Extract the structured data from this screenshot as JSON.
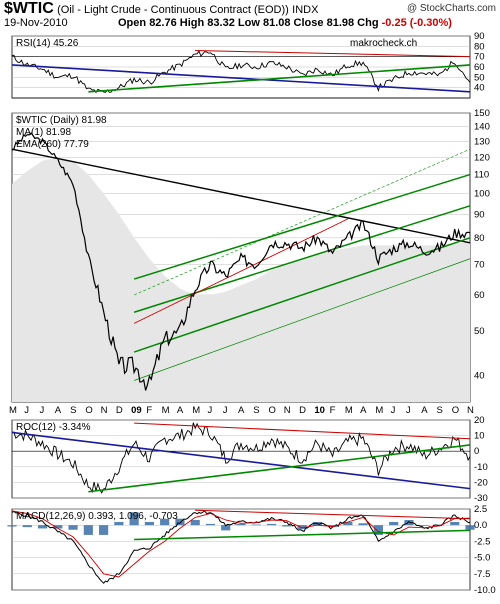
{
  "header": {
    "symbol": "$WTIC",
    "name": "(Oil - Light Crude - Continuous Contract (EOD))",
    "exchange": "INDX",
    "date": "19-Nov-2010",
    "open_label": "Open",
    "open": "82.76",
    "high_label": "High",
    "high": "83.32",
    "low_label": "Low",
    "low": "81.08",
    "close_label": "Close",
    "close": "81.98",
    "chg_label": "Chg",
    "chg": "-0.25 (-0.30%)",
    "credit": "@ StockCharts.com"
  },
  "chart_data": [
    {
      "type": "line",
      "panel": "rsi",
      "title": "RSI(14) 45.26",
      "watermark": "makrocheck.ch",
      "ylim": [
        30,
        90
      ],
      "yticks": [
        40,
        50,
        60,
        70,
        80,
        90
      ],
      "reference_lines": [
        30,
        70
      ],
      "x": [
        "2008-05",
        "2008-06",
        "2008-07",
        "2008-08",
        "2008-09",
        "2008-10",
        "2008-11",
        "2008-12",
        "2009-01",
        "2009-02",
        "2009-03",
        "2009-04",
        "2009-05",
        "2009-06",
        "2009-07",
        "2009-08",
        "2009-09",
        "2009-10",
        "2009-11",
        "2009-12",
        "2010-01",
        "2010-02",
        "2010-03",
        "2010-04",
        "2010-05",
        "2010-06",
        "2010-07",
        "2010-08",
        "2010-09",
        "2010-10",
        "2010-11"
      ],
      "series": [
        {
          "values": [
            70,
            62,
            58,
            50,
            52,
            38,
            35,
            40,
            48,
            45,
            55,
            62,
            72,
            75,
            58,
            62,
            60,
            64,
            60,
            52,
            58,
            52,
            62,
            64,
            40,
            48,
            55,
            54,
            52,
            66,
            45
          ]
        }
      ]
    },
    {
      "type": "line",
      "panel": "price",
      "title": "$WTIC (Daily) 81.98",
      "legend": [
        "MA(1) 81.98",
        "EMA(260) 77.79"
      ],
      "ylim": [
        35,
        150
      ],
      "log_scale": true,
      "yticks": [
        40,
        50,
        60,
        70,
        80,
        90,
        100,
        110,
        120,
        130,
        140,
        150
      ],
      "xlabels": [
        "M",
        "J",
        "J",
        "A",
        "S",
        "O",
        "N",
        "D",
        "09",
        "F",
        "M",
        "A",
        "M",
        "J",
        "J",
        "A",
        "S",
        "O",
        "N",
        "D",
        "10",
        "F",
        "M",
        "A",
        "M",
        "J",
        "J",
        "A",
        "S",
        "O",
        "N"
      ],
      "x": [
        "2008-05",
        "2008-06",
        "2008-07",
        "2008-08",
        "2008-09",
        "2008-10",
        "2008-11",
        "2008-12",
        "2009-01",
        "2009-02",
        "2009-03",
        "2009-04",
        "2009-05",
        "2009-06",
        "2009-07",
        "2009-08",
        "2009-09",
        "2009-10",
        "2009-11",
        "2009-12",
        "2010-01",
        "2010-02",
        "2010-03",
        "2010-04",
        "2010-05",
        "2010-06",
        "2010-07",
        "2010-08",
        "2010-09",
        "2010-10",
        "2010-11"
      ],
      "series": [
        {
          "name": "MA(1) 81.98",
          "values": [
            125,
            135,
            130,
            118,
            105,
            72,
            55,
            42,
            42,
            38,
            48,
            50,
            62,
            70,
            66,
            72,
            70,
            78,
            78,
            76,
            80,
            74,
            80,
            86,
            72,
            76,
            78,
            75,
            76,
            82,
            82
          ]
        },
        {
          "name": "EMA(260) 77.79",
          "values": [
            105,
            112,
            118,
            120,
            118,
            110,
            100,
            90,
            80,
            72,
            66,
            62,
            60,
            60,
            61,
            63,
            65,
            68,
            70,
            72,
            74,
            75,
            76,
            77,
            77,
            77,
            77,
            77,
            77,
            78,
            78
          ]
        }
      ]
    },
    {
      "type": "line",
      "panel": "roc",
      "title": "ROC(12) -3.34%",
      "ylim": [
        -30,
        20
      ],
      "yticks": [
        -30,
        -20,
        -10,
        0,
        10,
        20
      ],
      "x": [
        "2008-05",
        "2008-06",
        "2008-07",
        "2008-08",
        "2008-09",
        "2008-10",
        "2008-11",
        "2008-12",
        "2009-01",
        "2009-02",
        "2009-03",
        "2009-04",
        "2009-05",
        "2009-06",
        "2009-07",
        "2009-08",
        "2009-09",
        "2009-10",
        "2009-11",
        "2009-12",
        "2010-01",
        "2010-02",
        "2010-03",
        "2010-04",
        "2010-05",
        "2010-06",
        "2010-07",
        "2010-08",
        "2010-09",
        "2010-10",
        "2010-11"
      ],
      "series": [
        {
          "values": [
            12,
            10,
            5,
            -2,
            -8,
            -22,
            -25,
            -10,
            5,
            -5,
            8,
            10,
            15,
            12,
            -5,
            5,
            2,
            8,
            2,
            -5,
            5,
            -3,
            6,
            8,
            -12,
            2,
            4,
            -3,
            2,
            8,
            -3.34
          ]
        }
      ]
    },
    {
      "type": "line",
      "panel": "macd",
      "title": "MACD(12,26,9) 0.393, 1.096, -0.703",
      "ylim": [
        -10,
        2.5
      ],
      "yticks": [
        -10.0,
        -7.5,
        -5.0,
        -2.5,
        0.0,
        2.5
      ],
      "x": [
        "2008-05",
        "2008-06",
        "2008-07",
        "2008-08",
        "2008-09",
        "2008-10",
        "2008-11",
        "2008-12",
        "2009-01",
        "2009-02",
        "2009-03",
        "2009-04",
        "2009-05",
        "2009-06",
        "2009-07",
        "2009-08",
        "2009-09",
        "2009-10",
        "2009-11",
        "2009-12",
        "2010-01",
        "2010-02",
        "2010-03",
        "2010-04",
        "2010-05",
        "2010-06",
        "2010-07",
        "2010-08",
        "2010-09",
        "2010-10",
        "2010-11"
      ],
      "series": [
        {
          "name": "MACD",
          "values": [
            2,
            1.5,
            0.5,
            -1,
            -2.5,
            -6,
            -9,
            -7.5,
            -4,
            -3.5,
            -1.5,
            0.5,
            2,
            2,
            0,
            0.5,
            0.5,
            1,
            0.5,
            -1,
            0.5,
            -0.5,
            1,
            1.5,
            -2.5,
            -1,
            0.5,
            -0.5,
            0,
            1.5,
            0.393
          ]
        },
        {
          "name": "Signal",
          "values": [
            2.2,
            1.8,
            1,
            -0.5,
            -1.8,
            -4.5,
            -7.5,
            -8,
            -6,
            -4,
            -2.5,
            -0.5,
            1.2,
            1.8,
            0.8,
            0.3,
            0.4,
            0.8,
            0.7,
            -0.4,
            0,
            -0.2,
            0.5,
            1.2,
            -1,
            -1.5,
            -0.3,
            -0.4,
            -0.1,
            1,
            1.096
          ]
        },
        {
          "name": "Histogram",
          "values": [
            -0.2,
            -0.3,
            -0.5,
            -0.5,
            -0.7,
            -1.5,
            -1.5,
            0.5,
            2,
            0.5,
            1,
            1,
            0.8,
            0.2,
            -0.8,
            0.2,
            0.1,
            0.2,
            -0.2,
            -0.6,
            0.5,
            -0.3,
            0.5,
            0.3,
            -1.5,
            0.5,
            0.8,
            -0.1,
            0.1,
            0.5,
            -0.703
          ]
        }
      ]
    }
  ],
  "colors": {
    "price": "#000000",
    "ema": "#cccccc",
    "green_trend": "#008800",
    "red_trend": "#cc0000",
    "blue_trend": "#1a1a99",
    "macd_signal": "#cc0000",
    "macd_hist": "#3a6ea5",
    "grid": "#bfbfbf",
    "area": "#e6e6e6"
  }
}
